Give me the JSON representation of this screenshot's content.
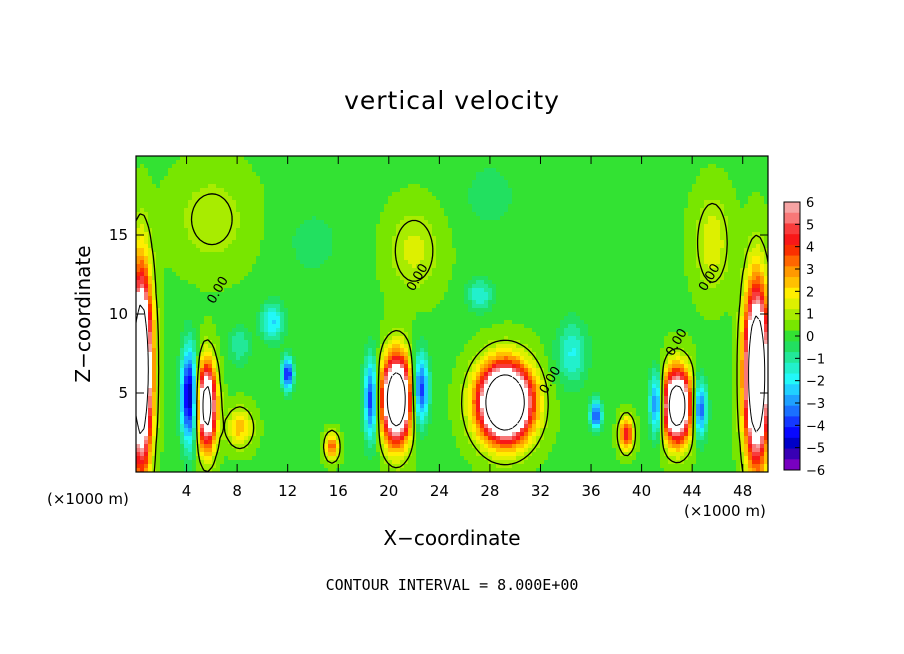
{
  "chart_data": {
    "type": "heatmap",
    "title": "vertical velocity",
    "xlabel": "X−coordinate",
    "ylabel": "Z−coordinate",
    "x_unit_label": "(×1000 m)",
    "z_unit_label": "(×1000 m)",
    "annotation": "CONTOUR INTERVAL = 8.000E+00",
    "xlim": [
      0,
      50
    ],
    "ylim": [
      0,
      20
    ],
    "x_ticks": [
      4,
      8,
      12,
      16,
      20,
      24,
      28,
      32,
      36,
      40,
      44,
      48
    ],
    "y_ticks": [
      5,
      10,
      15
    ],
    "colorbar": {
      "range": [
        -6,
        6
      ],
      "tick_labels": [
        "6",
        "5",
        "4",
        "3",
        "2",
        "1",
        "0",
        "−1",
        "−2",
        "−3",
        "−4",
        "−5",
        "−6"
      ],
      "levels": [
        {
          "value": 6,
          "color": "#f6a4a4"
        },
        {
          "value": 5.5,
          "color": "#f87878"
        },
        {
          "value": 5,
          "color": "#f83c3c"
        },
        {
          "value": 4.5,
          "color": "#f81818"
        },
        {
          "value": 4,
          "color": "#fa3000"
        },
        {
          "value": 3.5,
          "color": "#ff6600"
        },
        {
          "value": 3,
          "color": "#ff9900"
        },
        {
          "value": 2.5,
          "color": "#ffc000"
        },
        {
          "value": 2,
          "color": "#ffee00"
        },
        {
          "value": 1.5,
          "color": "#ddf000"
        },
        {
          "value": 1,
          "color": "#a8ec00"
        },
        {
          "value": 0.5,
          "color": "#78e600"
        },
        {
          "value": 0,
          "color": "#33e233"
        },
        {
          "value": -0.5,
          "color": "#22e060"
        },
        {
          "value": -1,
          "color": "#22e898"
        },
        {
          "value": -1.5,
          "color": "#22f0cc"
        },
        {
          "value": -2,
          "color": "#22f8f8"
        },
        {
          "value": -2.5,
          "color": "#20d0ff"
        },
        {
          "value": -3,
          "color": "#1ea0ff"
        },
        {
          "value": -3.5,
          "color": "#1a70ff"
        },
        {
          "value": -4,
          "color": "#1438ff"
        },
        {
          "value": -4.5,
          "color": "#0808ff"
        },
        {
          "value": -5,
          "color": "#0000c8"
        },
        {
          "value": -5.5,
          "color": "#3800b4"
        },
        {
          "value": -6,
          "color": "#7800c0"
        }
      ]
    },
    "contour_labels": [
      {
        "text": "0.00",
        "x": 6.5,
        "z": 11.5
      },
      {
        "text": "0.00",
        "x": 22.3,
        "z": 12.3
      },
      {
        "text": "0.00",
        "x": 32.8,
        "z": 5.8
      },
      {
        "text": "0.00",
        "x": 42.8,
        "z": 8.2
      },
      {
        "text": "0.00",
        "x": 45.4,
        "z": 12.3
      }
    ],
    "features": [
      {
        "kind": "updraft",
        "x": 0.4,
        "z": 6.5,
        "sx": 0.8,
        "sz": 5.8,
        "amp": 13
      },
      {
        "kind": "updraft",
        "x": 5.6,
        "z": 4.2,
        "sx": 0.7,
        "sz": 2.6,
        "amp": 10
      },
      {
        "kind": "updraft",
        "x": 20.6,
        "z": 4.6,
        "sx": 1.1,
        "sz": 2.6,
        "amp": 12
      },
      {
        "kind": "updraft",
        "x": 29.2,
        "z": 4.4,
        "sx": 2.0,
        "sz": 2.3,
        "amp": 14
      },
      {
        "kind": "updraft",
        "x": 42.8,
        "z": 4.2,
        "sx": 1.1,
        "sz": 2.2,
        "amp": 11
      },
      {
        "kind": "updraft",
        "x": 49.1,
        "z": 6.2,
        "sx": 0.9,
        "sz": 5.2,
        "amp": 13
      },
      {
        "kind": "updraft",
        "x": 15.5,
        "z": 1.6,
        "sx": 0.5,
        "sz": 0.8,
        "amp": 4
      },
      {
        "kind": "updraft",
        "x": 38.8,
        "z": 2.4,
        "sx": 0.5,
        "sz": 1.0,
        "amp": 5
      },
      {
        "kind": "updraft",
        "x": 8.2,
        "z": 2.8,
        "sx": 1.0,
        "sz": 1.2,
        "amp": 2.5
      },
      {
        "kind": "downdraft",
        "x": 4.2,
        "z": 4.8,
        "sx": 0.6,
        "sz": 3.0,
        "amp": -6
      },
      {
        "kind": "downdraft",
        "x": 12.0,
        "z": 6.2,
        "sx": 0.4,
        "sz": 1.0,
        "amp": -5.5
      },
      {
        "kind": "downdraft",
        "x": 18.6,
        "z": 4.6,
        "sx": 0.5,
        "sz": 2.6,
        "amp": -5
      },
      {
        "kind": "downdraft",
        "x": 22.5,
        "z": 5.2,
        "sx": 0.6,
        "sz": 2.2,
        "amp": -5
      },
      {
        "kind": "downdraft",
        "x": 36.4,
        "z": 3.6,
        "sx": 0.4,
        "sz": 0.9,
        "amp": -5
      },
      {
        "kind": "downdraft",
        "x": 41.2,
        "z": 4.3,
        "sx": 0.5,
        "sz": 2.0,
        "amp": -5
      },
      {
        "kind": "downdraft",
        "x": 44.6,
        "z": 4.0,
        "sx": 0.5,
        "sz": 1.8,
        "amp": -5
      },
      {
        "kind": "downdraft",
        "x": 10.8,
        "z": 9.5,
        "sx": 0.9,
        "sz": 1.2,
        "amp": -2.6
      },
      {
        "kind": "downdraft",
        "x": 27.2,
        "z": 11.2,
        "sx": 1.0,
        "sz": 1.0,
        "amp": -2
      },
      {
        "kind": "downdraft",
        "x": 34.5,
        "z": 7.5,
        "sx": 1.2,
        "sz": 2.0,
        "amp": -2
      },
      {
        "kind": "downdraft",
        "x": 8.2,
        "z": 8.0,
        "sx": 0.8,
        "sz": 1.2,
        "amp": -1.5
      },
      {
        "kind": "updraft",
        "x": 22.0,
        "z": 14.0,
        "sx": 2.0,
        "sz": 2.6,
        "amp": 1.3
      },
      {
        "kind": "updraft",
        "x": 45.6,
        "z": 14.5,
        "sx": 1.4,
        "sz": 3.0,
        "amp": 1.5
      },
      {
        "kind": "updraft",
        "x": 6.0,
        "z": 16.0,
        "sx": 3.0,
        "sz": 3.0,
        "amp": 1.0
      },
      {
        "kind": "downdraft",
        "x": 14.0,
        "z": 14.5,
        "sx": 2.5,
        "sz": 2.5,
        "amp": -0.6
      },
      {
        "kind": "downdraft",
        "x": 28.0,
        "z": 17.5,
        "sx": 2.0,
        "sz": 2.0,
        "amp": -0.8
      }
    ]
  }
}
